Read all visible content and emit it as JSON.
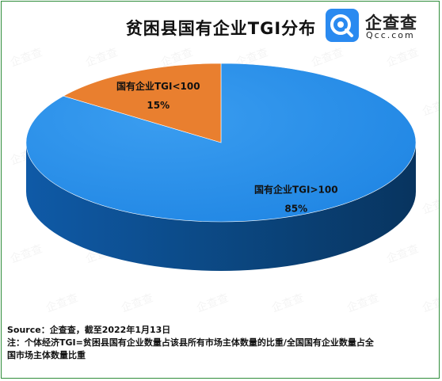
{
  "header": {
    "title": "贫困县国有企业TGI分布"
  },
  "logo": {
    "name": "企查查",
    "domain": "Qcc.com",
    "watermark_text": "企查查"
  },
  "chart_data": {
    "type": "pie",
    "title": "贫困县国有企业TGI分布",
    "slices": [
      {
        "label": "国有企业TGI>100",
        "value": 85,
        "value_label": "85%",
        "color": "#2a8fe8"
      },
      {
        "label": "国有企业TGI<100",
        "value": 15,
        "value_label": "15%",
        "color": "#e97f2f"
      }
    ],
    "style": "3d"
  },
  "footer": {
    "source": "Source：企查查，截至2022年1月13日",
    "note_line1": "注：个体经济TGI=贫困县国有企业数量占该县所有市场主体数量的比重/全国国有企业数量占全",
    "note_line2": "国市场主体数量比重"
  }
}
